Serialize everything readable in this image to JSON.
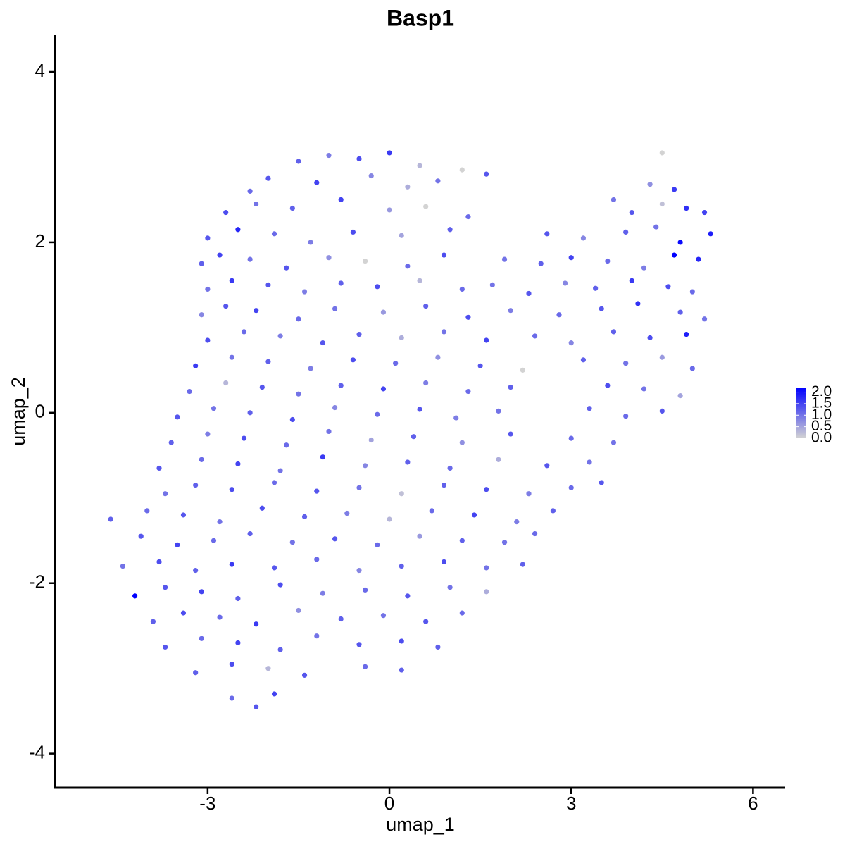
{
  "chart_data": {
    "type": "scatter",
    "title": "Basp1",
    "xlabel": "umap_1",
    "ylabel": "umap_2",
    "xlim": [
      -5.52,
      6.53
    ],
    "ylim": [
      -4.4,
      4.43
    ],
    "xticks": [
      -3,
      0,
      3,
      6
    ],
    "yticks": [
      -4,
      -2,
      0,
      2,
      4
    ],
    "color_scale": {
      "colors": [
        "#d3d3d3",
        "#0000ff"
      ],
      "lim": [
        0,
        2.2
      ],
      "ticks": [
        {
          "value": 0,
          "label": "0.0"
        },
        {
          "value": 0.5,
          "label": "0.5"
        },
        {
          "value": 1,
          "label": "1.0"
        },
        {
          "value": 1.5,
          "label": "1.5"
        },
        {
          "value": 2,
          "label": "2.0"
        }
      ]
    },
    "x": [
      -1.5,
      -1,
      -0.5,
      0,
      0.5,
      1.2,
      4.5,
      -2.3,
      -2,
      -1.2,
      -0.3,
      0.3,
      0.8,
      1.6,
      4.3,
      4.7,
      -2.7,
      -2.2,
      -1.6,
      -0.8,
      0,
      0.6,
      1.3,
      3.7,
      4.0,
      4.5,
      4.9,
      5.2,
      -3,
      -2.5,
      -1.9,
      -1.3,
      -0.6,
      0.2,
      1.0,
      2.6,
      3.2,
      3.9,
      4.4,
      4.8,
      5.3,
      -3.1,
      -2.8,
      -2.3,
      -1.7,
      -1.0,
      -0.4,
      0.3,
      0.9,
      1.9,
      2.5,
      3.0,
      3.6,
      4.2,
      4.7,
      5.1,
      -3.0,
      -2.6,
      -2.0,
      -1.4,
      -0.8,
      -0.2,
      0.5,
      1.2,
      1.7,
      2.3,
      2.9,
      3.4,
      4.0,
      4.6,
      5.0,
      -3.1,
      -2.7,
      -2.2,
      -1.5,
      -0.9,
      -0.1,
      0.6,
      1.3,
      2.0,
      2.8,
      3.5,
      4.1,
      4.8,
      5.2,
      -3.0,
      -2.4,
      -1.8,
      -1.1,
      -0.5,
      0.2,
      0.9,
      1.6,
      2.4,
      3.0,
      3.7,
      4.3,
      4.9,
      -3.2,
      -2.6,
      -2.0,
      -1.3,
      -0.6,
      0.1,
      0.8,
      1.5,
      2.2,
      3.2,
      3.9,
      4.5,
      5.0,
      -3.3,
      -2.7,
      -2.1,
      -1.5,
      -0.8,
      -0.1,
      0.6,
      1.3,
      2.0,
      3.6,
      4.2,
      4.8,
      -3.5,
      -2.9,
      -2.3,
      -1.6,
      -0.9,
      -0.2,
      0.5,
      1.1,
      1.8,
      3.3,
      3.9,
      4.5,
      -3.6,
      -3.0,
      -2.4,
      -1.7,
      -1.0,
      -0.3,
      0.4,
      1.2,
      2.0,
      3.0,
      3.7,
      -3.8,
      -3.1,
      -2.5,
      -1.8,
      -1.1,
      -0.4,
      0.3,
      1.0,
      1.8,
      2.6,
      3.3,
      -3.7,
      -3.2,
      -2.6,
      -1.9,
      -1.2,
      -0.5,
      0.2,
      0.9,
      1.6,
      2.3,
      3.0,
      3.5,
      -4.6,
      -4.0,
      -3.4,
      -2.8,
      -2.1,
      -1.4,
      -0.7,
      0.0,
      0.7,
      1.4,
      2.1,
      2.7,
      -4.1,
      -3.5,
      -2.9,
      -2.3,
      -1.6,
      -0.9,
      -0.2,
      0.5,
      1.2,
      1.9,
      2.4,
      -4.4,
      -3.8,
      -3.2,
      -2.6,
      -1.9,
      -1.2,
      -0.5,
      0.2,
      0.9,
      1.6,
      2.2,
      -4.2,
      -3.7,
      -3.1,
      -2.5,
      -1.8,
      -1.1,
      -0.4,
      0.3,
      1.0,
      1.6,
      -3.9,
      -3.4,
      -2.8,
      -2.2,
      -1.5,
      -0.8,
      -0.1,
      0.6,
      1.2,
      -3.7,
      -3.1,
      -2.5,
      -1.8,
      -1.2,
      -0.5,
      0.2,
      0.8,
      -3.2,
      -2.6,
      -2.0,
      -1.4,
      -0.4,
      0.2,
      -2.6,
      -2.2,
      -1.9
    ],
    "y": [
      2.95,
      3.02,
      2.98,
      3.05,
      2.9,
      2.85,
      3.05,
      2.6,
      2.75,
      2.7,
      2.78,
      2.65,
      2.72,
      2.8,
      2.68,
      2.62,
      2.35,
      2.45,
      2.4,
      2.5,
      2.38,
      2.42,
      2.3,
      2.5,
      2.35,
      2.45,
      2.4,
      2.35,
      2.05,
      2.15,
      2.1,
      2.0,
      2.12,
      2.08,
      2.15,
      2.1,
      2.05,
      2.12,
      2.18,
      2.0,
      2.1,
      1.75,
      1.85,
      1.8,
      1.7,
      1.82,
      1.78,
      1.72,
      1.85,
      1.8,
      1.75,
      1.82,
      1.78,
      1.7,
      1.85,
      1.8,
      1.45,
      1.55,
      1.5,
      1.42,
      1.52,
      1.48,
      1.55,
      1.45,
      1.5,
      1.4,
      1.52,
      1.46,
      1.55,
      1.48,
      1.42,
      1.15,
      1.25,
      1.2,
      1.1,
      1.22,
      1.18,
      1.25,
      1.12,
      1.2,
      1.15,
      1.22,
      1.28,
      1.18,
      1.1,
      0.85,
      0.95,
      0.9,
      0.82,
      0.92,
      0.88,
      0.95,
      0.85,
      0.9,
      0.82,
      0.95,
      0.88,
      0.92,
      0.55,
      0.65,
      0.6,
      0.52,
      0.62,
      0.58,
      0.65,
      0.55,
      0.5,
      0.62,
      0.58,
      0.65,
      0.52,
      0.25,
      0.35,
      0.3,
      0.22,
      0.32,
      0.28,
      0.35,
      0.25,
      0.3,
      0.32,
      0.28,
      0.2,
      -0.05,
      0.05,
      0.0,
      -0.08,
      0.06,
      -0.02,
      0.04,
      -0.06,
      0.02,
      0.05,
      -0.04,
      0.02,
      -0.35,
      -0.25,
      -0.3,
      -0.38,
      -0.22,
      -0.32,
      -0.28,
      -0.35,
      -0.25,
      -0.3,
      -0.35,
      -0.65,
      -0.55,
      -0.6,
      -0.68,
      -0.52,
      -0.62,
      -0.58,
      -0.65,
      -0.55,
      -0.62,
      -0.58,
      -0.95,
      -0.85,
      -0.9,
      -0.82,
      -0.92,
      -0.88,
      -0.95,
      -0.85,
      -0.9,
      -0.95,
      -0.88,
      -0.82,
      -1.25,
      -1.15,
      -1.2,
      -1.28,
      -1.12,
      -1.22,
      -1.18,
      -1.25,
      -1.15,
      -1.2,
      -1.28,
      -1.15,
      -1.45,
      -1.55,
      -1.5,
      -1.42,
      -1.52,
      -1.48,
      -1.55,
      -1.45,
      -1.5,
      -1.52,
      -1.42,
      -1.8,
      -1.75,
      -1.85,
      -1.78,
      -1.82,
      -1.72,
      -1.85,
      -1.8,
      -1.75,
      -1.82,
      -1.78,
      -2.15,
      -2.05,
      -2.1,
      -2.18,
      -2.02,
      -2.12,
      -2.08,
      -2.15,
      -2.05,
      -2.1,
      -2.45,
      -2.35,
      -2.4,
      -2.48,
      -2.32,
      -2.42,
      -2.38,
      -2.45,
      -2.35,
      -2.75,
      -2.65,
      -2.7,
      -2.78,
      -2.62,
      -2.72,
      -2.68,
      -2.75,
      -3.05,
      -2.95,
      -3.0,
      -3.08,
      -2.98,
      -3.02,
      -3.35,
      -3.45,
      -3.3
    ],
    "values": [
      1.2,
      0.9,
      1.4,
      1.6,
      0.3,
      0,
      0,
      1.1,
      1.3,
      1.5,
      0.8,
      0.4,
      1.0,
      1.3,
      0.7,
      1.6,
      1.4,
      1.0,
      1.2,
      1.5,
      0.6,
      0,
      1.1,
      1.0,
      1.3,
      0.2,
      1.7,
      1.5,
      1.3,
      1.8,
      1.1,
      0.9,
      1.4,
      0.5,
      1.2,
      1.3,
      0.8,
      1.2,
      1.0,
      2.1,
      1.9,
      1.2,
      1.5,
      1.0,
      1.3,
      0.7,
      0,
      1.1,
      1.4,
      1.0,
      1.2,
      1.5,
      1.1,
      0.9,
      2.2,
      1.8,
      1.0,
      1.6,
      1.3,
      0.9,
      1.2,
      1.4,
      0.3,
      1.1,
      1.0,
      1.3,
      0.8,
      1.2,
      1.6,
      1.4,
      1.1,
      0.8,
      1.3,
      1.5,
      1.1,
      1.0,
      0.6,
      1.2,
      1.4,
      0.9,
      1.1,
      1.3,
      1.7,
      1.2,
      1.0,
      1.4,
      1.1,
      0.9,
      1.3,
      1.2,
      0.4,
      1.0,
      1.5,
      1.1,
      0.8,
      1.2,
      1.4,
      1.9,
      1.6,
      1.0,
      1.2,
      0.9,
      1.4,
      1.1,
      0.7,
      1.3,
      0,
      1.2,
      1.0,
      0.6,
      1.1,
      1.1,
      0.3,
      1.3,
      1.0,
      1.2,
      1.5,
      0.9,
      1.1,
      1.2,
      1.4,
      1.0,
      0.5,
      1.3,
      1.0,
      1.2,
      1.4,
      0.8,
      1.1,
      1.3,
      0.9,
      1.0,
      1.2,
      1.1,
      1.3,
      1.2,
      0.9,
      1.4,
      1.1,
      1.0,
      0.5,
      1.2,
      0.7,
      1.3,
      1.1,
      1.0,
      1.3,
      1.1,
      1.5,
      1.0,
      1.6,
      0.8,
      1.2,
      1.1,
      0.4,
      1.3,
      1.0,
      1.0,
      1.2,
      1.4,
      1.1,
      1.3,
      1.0,
      0.2,
      1.2,
      1.4,
      0.9,
      1.1,
      1.3,
      1.2,
      1.1,
      1.3,
      1.0,
      1.4,
      1.2,
      0.9,
      0.3,
      1.1,
      1.5,
      0.9,
      1.2,
      1.3,
      1.5,
      1.1,
      1.2,
      1.0,
      1.3,
      1.1,
      0.6,
      1.2,
      1.0,
      1.1,
      1.0,
      1.4,
      1.2,
      1.6,
      1.3,
      1.1,
      0.8,
      1.2,
      1.4,
      1.0,
      1.2,
      2.2,
      1.3,
      1.5,
      1.2,
      1.4,
      0.9,
      1.1,
      1.3,
      1.0,
      0.4,
      1.2,
      1.4,
      1.1,
      1.6,
      0.7,
      1.2,
      1.0,
      1.3,
      1.1,
      1.3,
      1.1,
      1.5,
      1.2,
      1.0,
      1.3,
      1.4,
      1.2,
      1.2,
      1.4,
      0.3,
      1.3,
      1.1,
      1.2,
      1.1,
      1.3,
      1.5
    ]
  }
}
